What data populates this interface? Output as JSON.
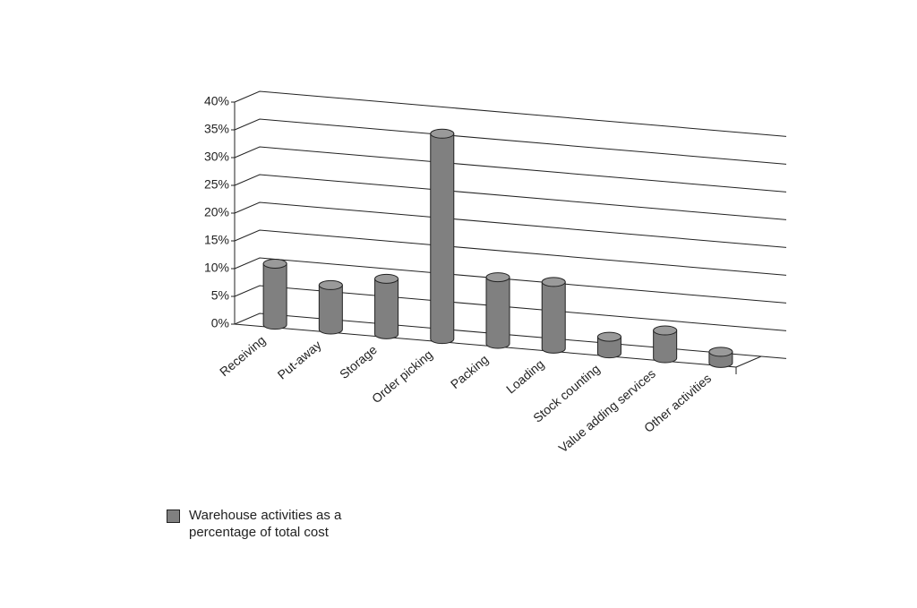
{
  "chart_data": {
    "type": "bar3d",
    "categories": [
      "Receiving",
      "Put-away",
      "Storage",
      "Order picking",
      "Packing",
      "Loading",
      "Stock counting",
      "Value adding services",
      "Other activities"
    ],
    "series": [
      {
        "name": "Warehouse activities as a percentage of total cost",
        "color": "#808080",
        "values": [
          11,
          8,
          10,
          37,
          12,
          12,
          3,
          5,
          2
        ]
      }
    ],
    "ylim": [
      0,
      40
    ],
    "yticks": [
      {
        "value": 0,
        "label": "0%"
      },
      {
        "value": 5,
        "label": "5%"
      },
      {
        "value": 10,
        "label": "10%"
      },
      {
        "value": 15,
        "label": "15%"
      },
      {
        "value": 20,
        "label": "20%"
      },
      {
        "value": 25,
        "label": "25%"
      },
      {
        "value": 30,
        "label": "30%"
      },
      {
        "value": 35,
        "label": "35%"
      },
      {
        "value": 40,
        "label": "40%"
      }
    ],
    "grid": true
  }
}
